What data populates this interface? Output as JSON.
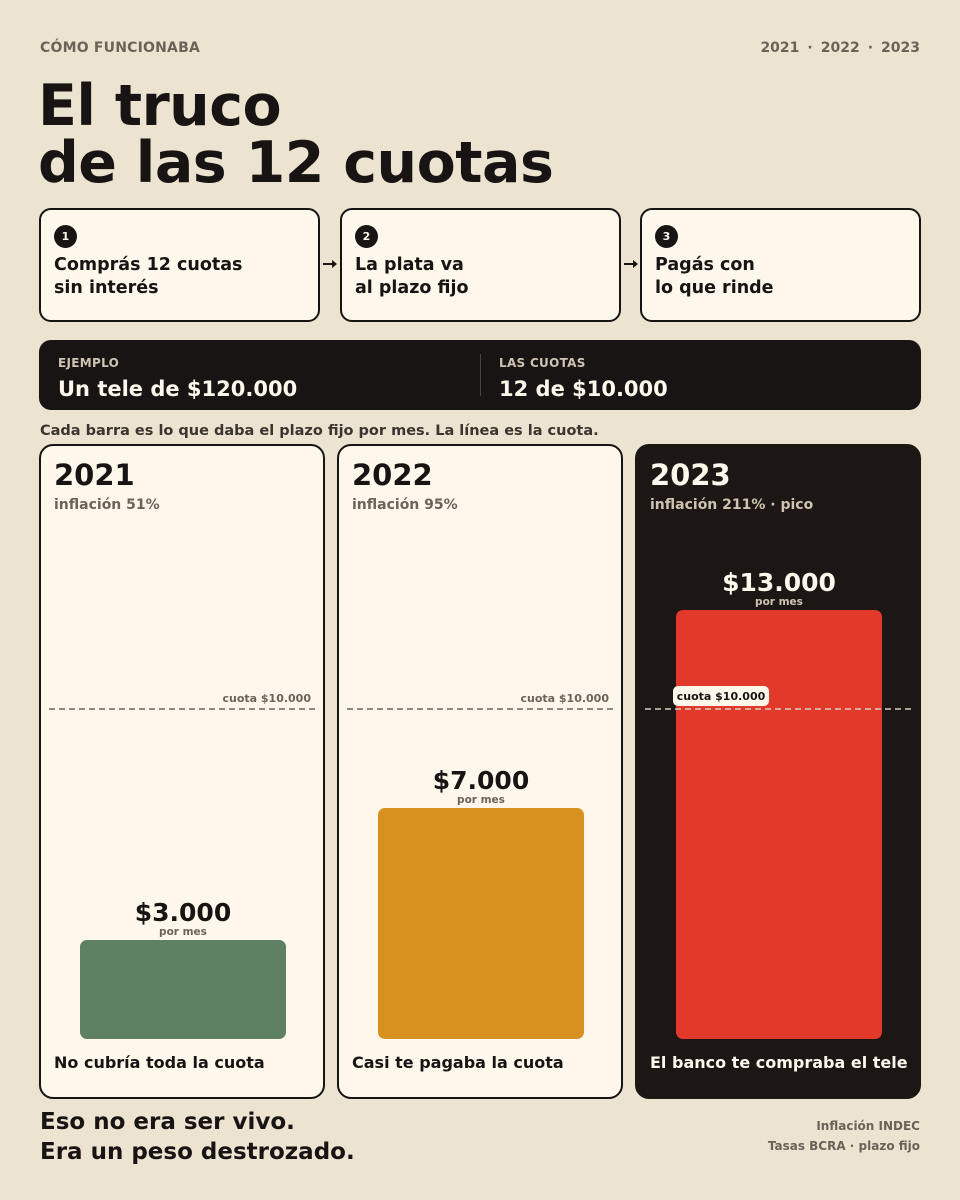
{
  "header": {
    "kicker": "CÓMO FUNCIONABA",
    "years": [
      "2021",
      "2022",
      "2023"
    ],
    "title_line1": "El truco",
    "title_line2": "de las 12 cuotas"
  },
  "steps": [
    {
      "num": "1",
      "line1": "Comprás 12 cuotas",
      "line2": "sin interés"
    },
    {
      "num": "2",
      "line1": "La plata va",
      "line2": "al plazo fijo"
    },
    {
      "num": "3",
      "line1": "Pagás con",
      "line2": "lo que rinde"
    }
  ],
  "example": {
    "label_left": "EJEMPLO",
    "value_left": "Un tele de $120.000",
    "label_right": "LAS CUOTAS",
    "value_right": "12 de $10.000"
  },
  "caption": "Cada barra es lo que daba el plazo fijo por mes. La línea es la cuota.",
  "colors": {
    "background": "#ede3d1",
    "bar_2021": "#5e8063",
    "bar_2022": "#d8901e",
    "bar_2023": "#e2392b",
    "dark_panel": "#1c1715"
  },
  "chart_data": [
    {
      "type": "bar",
      "title": "2021",
      "subtitle": "inflación 51%",
      "categories": [
        "2021"
      ],
      "values": [
        3000
      ],
      "value_label": "$3.000",
      "unit_label": "por mes",
      "reference_line": {
        "value": 10000,
        "label": "cuota $10.000"
      },
      "ylim": [
        0,
        15000
      ],
      "note": "No cubría toda la cuota",
      "color": "#5e8063"
    },
    {
      "type": "bar",
      "title": "2022",
      "subtitle": "inflación 95%",
      "categories": [
        "2022"
      ],
      "values": [
        7000
      ],
      "value_label": "$7.000",
      "unit_label": "por mes",
      "reference_line": {
        "value": 10000,
        "label": "cuota $10.000"
      },
      "ylim": [
        0,
        15000
      ],
      "note": "Casi te pagaba la cuota",
      "color": "#d8901e"
    },
    {
      "type": "bar",
      "title": "2023",
      "subtitle": "inflación 211%  ·  pico",
      "categories": [
        "2023"
      ],
      "values": [
        13000
      ],
      "value_label": "$13.000",
      "unit_label": "por mes",
      "reference_line": {
        "value": 10000,
        "label": "cuota $10.000"
      },
      "ylim": [
        0,
        15000
      ],
      "note": "El banco te compraba el tele",
      "color": "#e2392b"
    }
  ],
  "footer": {
    "line1": "Eso no era ser vivo.",
    "line2": "Era un peso destrozado.",
    "source1": "Inflación INDEC",
    "source2": "Tasas BCRA  ·  plazo fijo"
  }
}
